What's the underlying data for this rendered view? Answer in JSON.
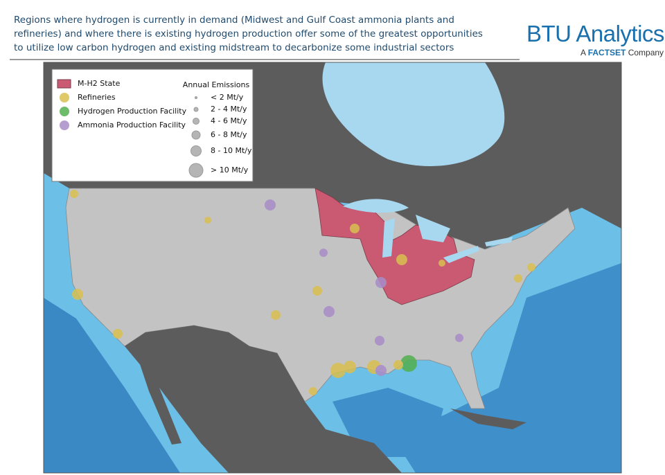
{
  "header": {
    "caption_lines": [
      "Regions where hydrogen is currently in demand (Midwest and Gulf Coast ammonia plants and",
      "refineries) and where there is existing hydrogen production offer some of the greatest opportunities",
      "to utilize low carbon hydrogen and existing midstream to decarbonize some industrial sectors"
    ],
    "brand": "BTU Analytics",
    "brand_sub_prefix": "A",
    "brand_sub_company": "FACTSET",
    "brand_sub_suffix": "Company"
  },
  "legend": {
    "items": [
      {
        "label": "M-H2 State",
        "color": "#c95a72"
      },
      {
        "label": "Refineries",
        "color": "#d9bf4f"
      },
      {
        "label": "Hydrogen Production Facility",
        "color": "#52b04f"
      },
      {
        "label": "Ammonia Production Facility",
        "color": "#a98cc8"
      }
    ],
    "size_title": "Annual Emissions",
    "sizes": [
      "< 2 Mt/y",
      "2 - 4 Mt/y",
      "4 - 6 Mt/y",
      "6 - 8 Mt/y",
      "8 - 10 Mt/y",
      "> 10 Mt/y"
    ]
  }
}
